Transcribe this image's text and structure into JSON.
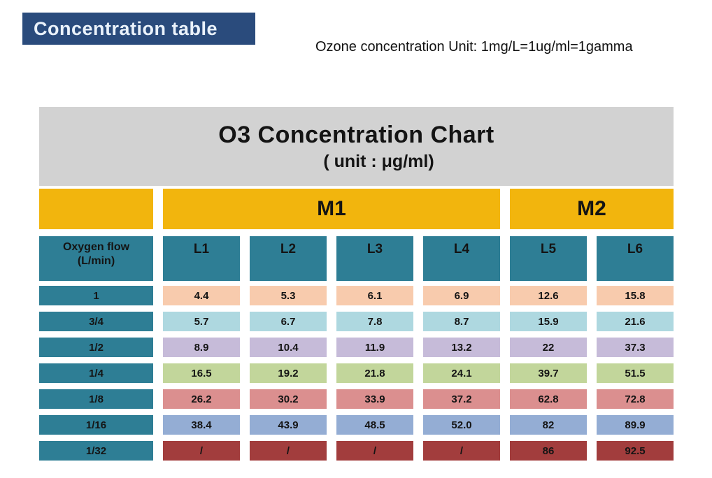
{
  "header": {
    "badge_label": "Concentration table",
    "unit_note": "Ozone concentration Unit: 1mg/L=1ug/ml=1gamma"
  },
  "table": {
    "title": "O3 Concentration Chart",
    "unit_line": "( unit : μg/ml)",
    "corner": {
      "line1": "Oxygen flow",
      "line2": "(L/min)"
    },
    "group_headers": [
      {
        "label": "M1",
        "span": 4
      },
      {
        "label": "M2",
        "span": 2
      }
    ],
    "column_headers": [
      "L1",
      "L2",
      "L3",
      "L4",
      "L5",
      "L6"
    ],
    "rows": [
      {
        "label": "1",
        "values": [
          "4.4",
          "5.3",
          "6.1",
          "6.9",
          "12.6",
          "15.8"
        ],
        "bg": "#F8CBAD",
        "fg": "#141414"
      },
      {
        "label": "3/4",
        "values": [
          "5.7",
          "6.7",
          "7.8",
          "8.7",
          "15.9",
          "21.6"
        ],
        "bg": "#AED8E0",
        "fg": "#141414"
      },
      {
        "label": "1/2",
        "values": [
          "8.9",
          "10.4",
          "11.9",
          "13.2",
          "22",
          "37.3"
        ],
        "bg": "#C6BBD9",
        "fg": "#141414"
      },
      {
        "label": "1/4",
        "values": [
          "16.5",
          "19.2",
          "21.8",
          "24.1",
          "39.7",
          "51.5"
        ],
        "bg": "#C2D69B",
        "fg": "#141414"
      },
      {
        "label": "1/8",
        "values": [
          "26.2",
          "30.2",
          "33.9",
          "37.2",
          "62.8",
          "72.8"
        ],
        "bg": "#DB8F8F",
        "fg": "#141414"
      },
      {
        "label": "1/16",
        "values": [
          "38.4",
          "43.9",
          "48.5",
          "52.0",
          "82",
          "89.9"
        ],
        "bg": "#94ADD4",
        "fg": "#141414"
      },
      {
        "label": "1/32",
        "values": [
          "/",
          "/",
          "/",
          "/",
          "86",
          "92.5"
        ],
        "bg": "#A23D3D",
        "fg": "#141414"
      }
    ]
  },
  "colors": {
    "badge_bg": "#2A4B7C",
    "badge_text": "#EAF2FB",
    "gray_header_bg": "#D2D2D2",
    "group_row_yellow": "#F2B50D",
    "header_teal": "#2E7E95",
    "text_dark": "#141414",
    "page_bg": "#FFFFFF"
  },
  "chart_data": {
    "type": "table",
    "title": "O3 Concentration Chart",
    "subtitle": "( unit : μg/ml)",
    "unit": "μg/ml",
    "note": "Ozone concentration Unit: 1mg/L=1ug/ml=1gamma",
    "row_header": "Oxygen flow (L/min)",
    "column_groups": [
      {
        "label": "M1",
        "columns": [
          "L1",
          "L2",
          "L3",
          "L4"
        ]
      },
      {
        "label": "M2",
        "columns": [
          "L5",
          "L6"
        ]
      }
    ],
    "columns": [
      "L1",
      "L2",
      "L3",
      "L4",
      "L5",
      "L6"
    ],
    "rows": [
      {
        "oxygen_flow": "1",
        "values": [
          4.4,
          5.3,
          6.1,
          6.9,
          12.6,
          15.8
        ]
      },
      {
        "oxygen_flow": "3/4",
        "values": [
          5.7,
          6.7,
          7.8,
          8.7,
          15.9,
          21.6
        ]
      },
      {
        "oxygen_flow": "1/2",
        "values": [
          8.9,
          10.4,
          11.9,
          13.2,
          22,
          37.3
        ]
      },
      {
        "oxygen_flow": "1/4",
        "values": [
          16.5,
          19.2,
          21.8,
          24.1,
          39.7,
          51.5
        ]
      },
      {
        "oxygen_flow": "1/8",
        "values": [
          26.2,
          30.2,
          33.9,
          37.2,
          62.8,
          72.8
        ]
      },
      {
        "oxygen_flow": "1/16",
        "values": [
          38.4,
          43.9,
          48.5,
          52.0,
          82,
          89.9
        ]
      },
      {
        "oxygen_flow": "1/32",
        "values": [
          null,
          null,
          null,
          null,
          86,
          92.5
        ]
      }
    ]
  }
}
